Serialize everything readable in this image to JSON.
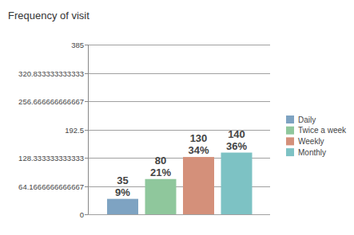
{
  "chart_data": {
    "type": "bar",
    "title": "Frequency of visit",
    "categories": [
      "Daily",
      "Twice a week",
      "Weekly",
      "Monthly"
    ],
    "values": [
      35,
      80,
      130,
      140
    ],
    "percent_labels": [
      "9%",
      "21%",
      "34%",
      "36%"
    ],
    "colors": [
      "#7ea3c2",
      "#8fc79c",
      "#d4907a",
      "#7dc2c4"
    ],
    "ylim": [
      0,
      385
    ],
    "yticks": [
      0,
      {
        "value": 64.1666666666667,
        "label": "64.1666666666667"
      },
      {
        "value": 128.333333333333,
        "label": "128.333333333333"
      },
      192.5,
      {
        "value": 256.666666666667,
        "label": "256.666666666667"
      },
      {
        "value": 320.833333333333,
        "label": "320.833333333333"
      },
      385
    ],
    "grid": true,
    "data_labels": true,
    "legend": "right",
    "tick_labels": "y"
  }
}
